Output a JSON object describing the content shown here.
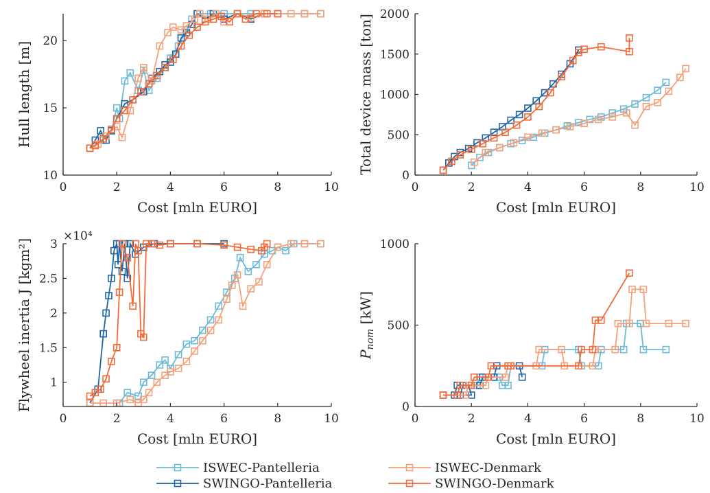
{
  "colors": {
    "ISWEC-Pantelleria": "#6bbad8",
    "SWINGO-Pantelleria": "#1f64a3",
    "ISWEC-Denmark": "#f4a07a",
    "SWINGO-Denmark": "#f26a38"
  },
  "legend": [
    "ISWEC-Pantelleria",
    "SWINGO-Pantelleria",
    "ISWEC-Denmark",
    "SWINGO-Denmark"
  ],
  "chart_data": [
    {
      "type": "line",
      "id": "hull",
      "xlabel": "Cost [mln EURO]",
      "ylabel": "Hull length [m]",
      "xlim": [
        0,
        10
      ],
      "ylim": [
        10,
        22
      ],
      "xticks": [
        "0",
        "2",
        "4",
        "6",
        "8",
        "10"
      ],
      "yticks": [
        "10",
        "15",
        "20"
      ],
      "ytick_values": [
        10,
        15,
        20
      ],
      "exponent": "",
      "series": [
        {
          "name": "ISWEC-Pantelleria",
          "x": [
            1.0,
            1.2,
            1.5,
            1.8,
            2.0,
            2.1,
            2.3,
            2.5,
            2.8,
            3.0,
            3.2,
            3.5,
            3.8,
            4.0,
            4.3,
            4.6,
            4.8,
            5.0,
            5.5,
            6.0,
            7.0,
            8.0,
            9.0,
            9.6
          ],
          "y": [
            12,
            12.2,
            12.6,
            13.3,
            15.0,
            14.2,
            17.0,
            17.6,
            16.3,
            17.8,
            16.3,
            17.2,
            18.0,
            18.7,
            19.6,
            20.8,
            21.6,
            22,
            22,
            22,
            22,
            22,
            22,
            22
          ]
        },
        {
          "name": "SWINGO-Pantelleria",
          "x": [
            1.0,
            1.2,
            1.4,
            1.6,
            1.8,
            2.0,
            2.3,
            2.6,
            3.0,
            3.3,
            3.6,
            3.8,
            4.0,
            4.2,
            4.4,
            4.6,
            4.8,
            5.0,
            5.3,
            5.6,
            6.0,
            6.5,
            7.0,
            7.5,
            8.0
          ],
          "y": [
            12,
            12.6,
            13.3,
            12.6,
            13.3,
            14.2,
            15.3,
            15.6,
            16.2,
            17.2,
            17.7,
            18.2,
            18.4,
            19.0,
            20.2,
            20.6,
            21.2,
            22,
            21.6,
            22,
            21.6,
            22,
            21.6,
            22,
            22
          ]
        },
        {
          "name": "ISWEC-Denmark",
          "x": [
            1.0,
            1.3,
            1.6,
            2.0,
            2.2,
            2.5,
            2.8,
            3.0,
            3.3,
            3.6,
            3.9,
            4.1,
            4.4,
            4.6,
            4.9,
            5.1,
            5.4,
            5.7,
            6.0,
            6.5,
            7.0,
            7.5,
            8.0,
            8.5,
            9.0,
            9.6
          ],
          "y": [
            12,
            12.3,
            12.9,
            13.6,
            12.8,
            14.8,
            17.2,
            18.0,
            17.0,
            19.6,
            20.6,
            21.0,
            20.8,
            21.1,
            21.6,
            22,
            21.6,
            22,
            21.4,
            22,
            21.7,
            22,
            22,
            22,
            22,
            22
          ]
        },
        {
          "name": "SWINGO-Denmark",
          "x": [
            1.0,
            1.2,
            1.5,
            1.8,
            2.0,
            2.3,
            2.6,
            2.9,
            3.2,
            3.5,
            3.8,
            4.1,
            4.4,
            4.7,
            5.0,
            5.3,
            5.6,
            5.9,
            6.2,
            6.5,
            6.8,
            7.2,
            7.6,
            8.0
          ],
          "y": [
            12,
            12.2,
            12.7,
            13.4,
            14.2,
            14.8,
            15.6,
            16.2,
            16.8,
            17.4,
            18.0,
            18.6,
            19.6,
            20.4,
            21.0,
            21.4,
            21.6,
            21.8,
            21.4,
            22,
            21.6,
            22,
            22,
            22
          ]
        }
      ]
    },
    {
      "type": "line",
      "id": "mass",
      "xlabel": "Cost [mln EURO]",
      "ylabel": "Total device mass [ton]",
      "xlim": [
        0,
        10
      ],
      "ylim": [
        0,
        2000
      ],
      "xticks": [
        "0",
        "2",
        "4",
        "6",
        "8",
        "10"
      ],
      "yticks": [
        "0",
        "500",
        "1000",
        "1500",
        "2000"
      ],
      "ytick_values": [
        0,
        500,
        1000,
        1500,
        2000
      ],
      "exponent": "",
      "series": [
        {
          "name": "ISWEC-Pantelleria",
          "x": [
            2.0,
            2.3,
            2.6,
            3.0,
            3.4,
            3.8,
            4.2,
            4.6,
            5.0,
            5.4,
            5.8,
            6.2,
            6.6,
            7.0,
            7.4,
            7.8,
            8.2,
            8.6,
            8.9
          ],
          "y": [
            120,
            220,
            280,
            340,
            390,
            430,
            470,
            520,
            560,
            610,
            650,
            690,
            720,
            770,
            820,
            880,
            960,
            1050,
            1150
          ]
        },
        {
          "name": "SWINGO-Pantelleria",
          "x": [
            1.0,
            1.2,
            1.4,
            1.6,
            1.9,
            2.2,
            2.5,
            2.8,
            3.1,
            3.4,
            3.7,
            4.0,
            4.3,
            4.6,
            4.9,
            5.2,
            5.5,
            5.8
          ],
          "y": [
            60,
            150,
            230,
            280,
            330,
            400,
            460,
            530,
            600,
            680,
            750,
            830,
            920,
            1020,
            1130,
            1250,
            1380,
            1550
          ]
        },
        {
          "name": "ISWEC-Denmark",
          "x": [
            2.1,
            2.5,
            3.0,
            3.5,
            4.0,
            4.5,
            5.0,
            5.5,
            6.0,
            6.5,
            7.0,
            7.5,
            7.8,
            8.2,
            8.6,
            9.0,
            9.4,
            9.6
          ],
          "y": [
            160,
            280,
            340,
            400,
            470,
            520,
            560,
            600,
            640,
            690,
            720,
            770,
            620,
            850,
            900,
            1040,
            1210,
            1320
          ]
        },
        {
          "name": "SWINGO-Denmark",
          "x": [
            1.0,
            1.3,
            1.6,
            2.0,
            2.4,
            2.8,
            3.2,
            3.6,
            4.0,
            4.4,
            4.8,
            5.2,
            5.6,
            5.8,
            6.0,
            6.6,
            7.6,
            7.6
          ],
          "y": [
            60,
            170,
            250,
            320,
            390,
            460,
            530,
            620,
            720,
            850,
            1020,
            1220,
            1420,
            1520,
            1560,
            1590,
            1530,
            1700
          ]
        }
      ]
    },
    {
      "type": "line",
      "id": "inertia",
      "xlabel": "Cost [mln EURO]",
      "ylabel": "Flywheel inertia J [kgm²]",
      "xlim": [
        0,
        10
      ],
      "ylim": [
        6500,
        30000
      ],
      "xticks": [
        "0",
        "2",
        "4",
        "6",
        "8",
        "10"
      ],
      "yticks": [
        "1",
        "1.5",
        "2",
        "2.5",
        "3"
      ],
      "ytick_values": [
        10000,
        15000,
        20000,
        25000,
        30000
      ],
      "exponent": "×10⁴",
      "series": [
        {
          "name": "ISWEC-Pantelleria",
          "x": [
            2.1,
            2.4,
            2.8,
            3.0,
            3.3,
            3.6,
            3.8,
            4.0,
            4.3,
            4.6,
            4.9,
            5.2,
            5.5,
            5.8,
            6.1,
            6.4,
            6.6,
            6.9,
            7.2,
            7.5,
            7.8,
            8.0,
            8.3,
            8.6,
            9.0,
            9.6
          ],
          "y": [
            7000,
            8500,
            8000,
            10000,
            11000,
            12500,
            13200,
            12000,
            14000,
            15500,
            16000,
            17500,
            19000,
            21000,
            23000,
            25000,
            28000,
            26000,
            27000,
            28500,
            29000,
            29500,
            29000,
            30000,
            30000,
            30000
          ]
        },
        {
          "name": "SWINGO-Pantelleria",
          "x": [
            1.0,
            1.3,
            1.5,
            1.6,
            1.7,
            1.8,
            1.9,
            2.0,
            2.05,
            2.1,
            2.2,
            2.3,
            2.4,
            2.5,
            2.7,
            3.0,
            3.4,
            4.0,
            5.0,
            6.0
          ],
          "y": [
            7000,
            9000,
            17000,
            20000,
            22500,
            25000,
            29000,
            30000,
            27000,
            30000,
            26000,
            30000,
            25000,
            30000,
            28500,
            29500,
            30000,
            30000,
            30000,
            30000
          ]
        },
        {
          "name": "ISWEC-Denmark",
          "x": [
            1.0,
            1.5,
            2.0,
            2.5,
            2.8,
            3.0,
            3.2,
            3.5,
            3.8,
            4.0,
            4.3,
            4.6,
            4.9,
            5.2,
            5.5,
            5.8,
            6.1,
            6.3,
            6.5,
            6.7,
            7.0,
            7.3,
            7.6,
            8.0,
            8.5,
            9.0,
            9.6
          ],
          "y": [
            7000,
            7000,
            7000,
            7500,
            7000,
            7500,
            8500,
            10000,
            11000,
            11500,
            12000,
            13000,
            14500,
            16000,
            17500,
            19000,
            22000,
            24000,
            25500,
            21000,
            23500,
            24500,
            27000,
            29500,
            30000,
            30000,
            30000
          ]
        },
        {
          "name": "SWINGO-Denmark",
          "x": [
            1.0,
            1.2,
            1.4,
            1.6,
            1.8,
            2.0,
            2.1,
            2.2,
            2.4,
            2.6,
            2.7,
            2.8,
            2.9,
            3.0,
            3.1,
            3.3,
            3.6,
            4.0,
            5.0,
            6.0,
            6.5,
            7.0,
            7.4,
            7.5,
            7.6
          ],
          "y": [
            8000,
            8500,
            9000,
            10500,
            13000,
            15000,
            23000,
            30000,
            28000,
            21000,
            30000,
            29000,
            17000,
            16500,
            30000,
            30000,
            29800,
            30000,
            30000,
            29800,
            29500,
            29200,
            29000,
            29500,
            30000
          ]
        }
      ]
    },
    {
      "type": "line",
      "id": "pnom",
      "xlabel": "Cost [mln EURO]",
      "ylabel": "P_nom [kW]",
      "xlim": [
        0,
        10
      ],
      "ylim": [
        0,
        1000
      ],
      "xticks": [
        "0",
        "2",
        "4",
        "6",
        "8",
        "10"
      ],
      "yticks": [
        "0",
        "500",
        "1000"
      ],
      "ytick_values": [
        0,
        500,
        1000
      ],
      "exponent": "",
      "series": [
        {
          "name": "ISWEC-Pantelleria",
          "x": [
            1.0,
            1.5,
            1.6,
            2.2,
            2.3,
            3.0,
            3.1,
            3.3,
            3.4,
            4.5,
            4.6,
            5.8,
            5.9,
            6.5,
            6.6,
            7.4,
            7.5,
            8.0,
            8.1,
            8.9
          ],
          "y": [
            70,
            70,
            130,
            130,
            180,
            180,
            130,
            130,
            250,
            250,
            350,
            350,
            250,
            250,
            350,
            350,
            510,
            510,
            350,
            350
          ]
        },
        {
          "name": "SWINGO-Pantelleria",
          "x": [
            1.0,
            1.4,
            1.5,
            1.9,
            2.0,
            1.6,
            1.7,
            2.3,
            2.4,
            2.8,
            2.9,
            3.7,
            3.8
          ],
          "y": [
            70,
            70,
            130,
            130,
            70,
            70,
            130,
            130,
            180,
            180,
            250,
            250,
            180
          ]
        },
        {
          "name": "ISWEC-Denmark",
          "x": [
            1.0,
            1.8,
            1.9,
            2.5,
            2.6,
            3.2,
            3.3,
            4.3,
            4.4,
            5.2,
            5.3,
            6.3,
            6.4,
            7.1,
            7.2,
            7.6,
            7.7,
            8.1,
            8.2,
            9.0,
            9.6
          ],
          "y": [
            70,
            70,
            130,
            130,
            180,
            180,
            250,
            250,
            350,
            350,
            250,
            250,
            350,
            350,
            510,
            510,
            720,
            720,
            510,
            510,
            510
          ]
        },
        {
          "name": "SWINGO-Denmark",
          "x": [
            1.0,
            1.5,
            1.6,
            2.0,
            2.1,
            2.6,
            2.7,
            3.3,
            3.4,
            5.8,
            5.9,
            6.3,
            6.4,
            6.6,
            7.6
          ],
          "y": [
            70,
            70,
            130,
            130,
            180,
            180,
            250,
            250,
            250,
            250,
            350,
            350,
            530,
            530,
            820
          ]
        }
      ]
    }
  ]
}
